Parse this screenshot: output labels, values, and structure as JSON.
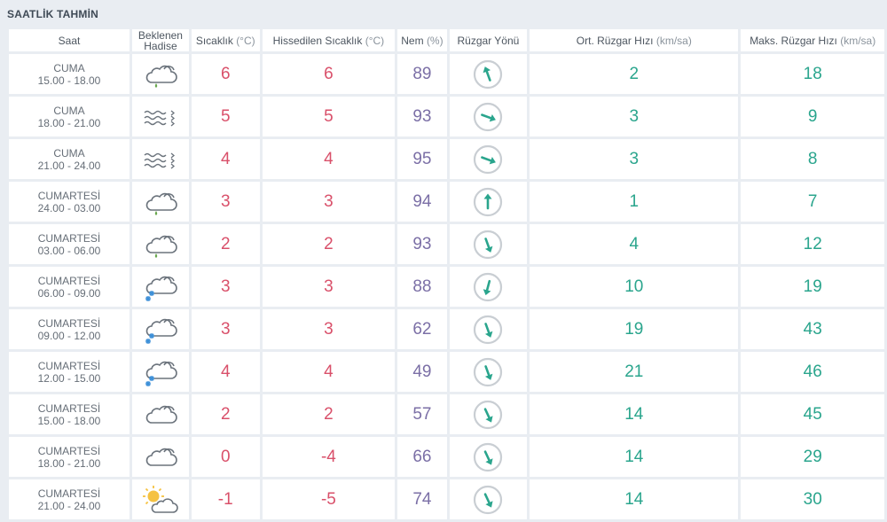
{
  "title": "SAATLİK TAHMİN",
  "headers": {
    "saat": "Saat",
    "hadise_1": "Beklenen",
    "hadise_2": "Hadise",
    "sicaklik": "Sıcaklık",
    "sicaklik_unit": "(°C)",
    "hissedilen": "Hissedilen Sıcaklık",
    "hissedilen_unit": "(°C)",
    "nem": "Nem",
    "nem_unit": "(%)",
    "yon": "Rüzgar Yönü",
    "ort": "Ort. Rüzgar Hızı",
    "ort_unit": "(km/sa)",
    "maks": "Maks. Rüzgar Hızı",
    "maks_unit": "(km/sa)"
  },
  "rows": [
    {
      "day": "CUMA",
      "range": "15.00 - 18.00",
      "icon": "cloud-rain-icon",
      "temp": "6",
      "feels": "6",
      "humidity": "89",
      "wind_dir_deg": -20,
      "avg": "2",
      "max": "18"
    },
    {
      "day": "CUMA",
      "range": "18.00 - 21.00",
      "icon": "fog-icon",
      "temp": "5",
      "feels": "5",
      "humidity": "93",
      "wind_dir_deg": 110,
      "avg": "3",
      "max": "9"
    },
    {
      "day": "CUMA",
      "range": "21.00 - 24.00",
      "icon": "fog-icon",
      "temp": "4",
      "feels": "4",
      "humidity": "95",
      "wind_dir_deg": 110,
      "avg": "3",
      "max": "8"
    },
    {
      "day": "CUMARTESİ",
      "range": "24.00 - 03.00",
      "icon": "cloud-rain-icon",
      "temp": "3",
      "feels": "3",
      "humidity": "94",
      "wind_dir_deg": 0,
      "avg": "1",
      "max": "7"
    },
    {
      "day": "CUMARTESİ",
      "range": "03.00 - 06.00",
      "icon": "cloud-rain-icon",
      "temp": "2",
      "feels": "2",
      "humidity": "93",
      "wind_dir_deg": 160,
      "avg": "4",
      "max": "12"
    },
    {
      "day": "CUMARTESİ",
      "range": "06.00 - 09.00",
      "icon": "cloud-snow-icon",
      "temp": "3",
      "feels": "3",
      "humidity": "88",
      "wind_dir_deg": 195,
      "avg": "10",
      "max": "19"
    },
    {
      "day": "CUMARTESİ",
      "range": "09.00 - 12.00",
      "icon": "cloud-snow-icon",
      "temp": "3",
      "feels": "3",
      "humidity": "62",
      "wind_dir_deg": 160,
      "avg": "19",
      "max": "43"
    },
    {
      "day": "CUMARTESİ",
      "range": "12.00 - 15.00",
      "icon": "cloud-snow-icon",
      "temp": "4",
      "feels": "4",
      "humidity": "49",
      "wind_dir_deg": 160,
      "avg": "21",
      "max": "46"
    },
    {
      "day": "CUMARTESİ",
      "range": "15.00 - 18.00",
      "icon": "cloud-icon",
      "temp": "2",
      "feels": "2",
      "humidity": "57",
      "wind_dir_deg": 155,
      "avg": "14",
      "max": "45"
    },
    {
      "day": "CUMARTESİ",
      "range": "18.00 - 21.00",
      "icon": "cloud-icon",
      "temp": "0",
      "feels": "-4",
      "humidity": "66",
      "wind_dir_deg": 155,
      "avg": "14",
      "max": "29"
    },
    {
      "day": "CUMARTESİ",
      "range": "21.00 - 24.00",
      "icon": "sun-cloud-icon",
      "temp": "-1",
      "feels": "-5",
      "humidity": "74",
      "wind_dir_deg": 155,
      "avg": "14",
      "max": "30"
    }
  ],
  "colors": {
    "temp": "#d9506a",
    "humidity": "#7b6fa6",
    "wind": "#2aa58d",
    "rain_drop": "#6aa84f",
    "snow": "#3b8fd8",
    "sun": "#f5c242"
  }
}
